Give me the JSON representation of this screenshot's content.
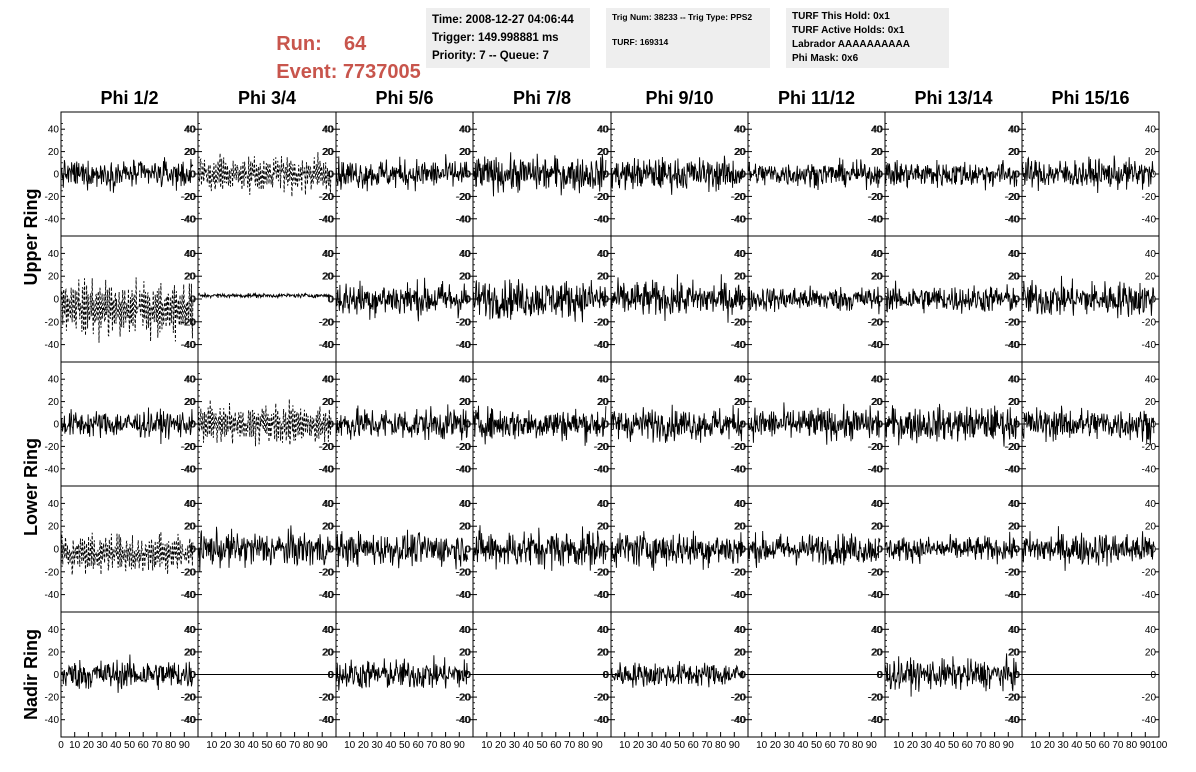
{
  "header": {
    "run_label": "Run:",
    "run_value": "64",
    "event_label": "Event:",
    "event_value": "7737005",
    "time_box": {
      "time": "Time: 2008-12-27 04:06:44",
      "trigger": "Trigger: 149.998881 ms",
      "priority": "Priority: 7 -- Queue: 7"
    },
    "trig_box": {
      "trig": "Trig Num: 38233 -- Trig Type: PPS2",
      "turf": "TURF: 169314"
    },
    "turf_box": {
      "hold": "TURF This Hold: 0x1",
      "active": "TURF Active Holds: 0x1",
      "labrador": "Labrador AAAAAAAAAA",
      "phimask": "Phi Mask: 0x6"
    }
  },
  "chart_data": {
    "type": "line",
    "columns": [
      "Phi 1/2",
      "Phi 3/4",
      "Phi 5/6",
      "Phi 7/8",
      "Phi 9/10",
      "Phi 11/12",
      "Phi 13/14",
      "Phi 15/16"
    ],
    "rings": [
      "Upper Ring",
      "Lower Ring",
      "Nadir Ring"
    ],
    "rows": [
      {
        "ring": "Upper Ring",
        "channels": [
          {
            "amp": 10,
            "style": "solid"
          },
          {
            "amp": 12,
            "style": "dashed"
          },
          {
            "amp": 11,
            "style": "solid"
          },
          {
            "amp": 13,
            "style": "solid"
          },
          {
            "amp": 12,
            "style": "solid"
          },
          {
            "amp": 9,
            "style": "solid"
          },
          {
            "amp": 10,
            "style": "solid"
          },
          {
            "amp": 11,
            "style": "solid"
          }
        ]
      },
      {
        "ring": "Upper Ring",
        "channels": [
          {
            "amp": 18,
            "offset": -8,
            "style": "dashed"
          },
          {
            "amp": 1.5,
            "offset": 3,
            "style": "solid"
          },
          {
            "amp": 13,
            "style": "solid"
          },
          {
            "amp": 14,
            "style": "solid"
          },
          {
            "amp": 13,
            "style": "solid"
          },
          {
            "amp": 9,
            "style": "solid"
          },
          {
            "amp": 10,
            "style": "solid"
          },
          {
            "amp": 13,
            "style": "solid"
          }
        ]
      },
      {
        "ring": "Lower Ring",
        "channels": [
          {
            "amp": 10,
            "style": "solid"
          },
          {
            "amp": 13,
            "style": "dashed"
          },
          {
            "amp": 12,
            "style": "solid"
          },
          {
            "amp": 12,
            "style": "solid"
          },
          {
            "amp": 12,
            "style": "solid"
          },
          {
            "amp": 12,
            "style": "solid"
          },
          {
            "amp": 13,
            "style": "solid"
          },
          {
            "amp": 12,
            "style": "solid"
          }
        ]
      },
      {
        "ring": "Lower Ring",
        "channels": [
          {
            "amp": 13,
            "offset": -4,
            "style": "dashed"
          },
          {
            "amp": 13,
            "style": "solid"
          },
          {
            "amp": 12,
            "style": "solid"
          },
          {
            "amp": 14,
            "style": "solid"
          },
          {
            "amp": 13,
            "style": "solid"
          },
          {
            "amp": 11,
            "style": "solid"
          },
          {
            "amp": 9,
            "style": "solid"
          },
          {
            "amp": 12,
            "style": "solid"
          }
        ]
      },
      {
        "ring": "Nadir Ring",
        "channels": [
          {
            "amp": 11,
            "style": "solid"
          },
          {
            "amp": 0,
            "style": "flat"
          },
          {
            "amp": 11,
            "style": "solid"
          },
          {
            "amp": 0,
            "style": "flat"
          },
          {
            "amp": 9,
            "style": "solid"
          },
          {
            "amp": 0,
            "style": "flat"
          },
          {
            "amp": 11,
            "style": "solid"
          },
          {
            "amp": 0,
            "style": "flat"
          }
        ]
      }
    ],
    "xlim": [
      0,
      100
    ],
    "ylim": [
      -50,
      50
    ],
    "y_ticks": [
      -40,
      -20,
      0,
      20,
      40
    ],
    "x_ticks": [
      10,
      20,
      30,
      40,
      50,
      60,
      70,
      80,
      90
    ],
    "x_ticks_first": [
      0,
      10,
      20,
      30,
      40,
      50,
      60,
      70,
      80,
      90
    ],
    "x_ticks_last": [
      10,
      20,
      30,
      40,
      50,
      60,
      70,
      80,
      90,
      100
    ],
    "samples_per_trace": 256
  }
}
